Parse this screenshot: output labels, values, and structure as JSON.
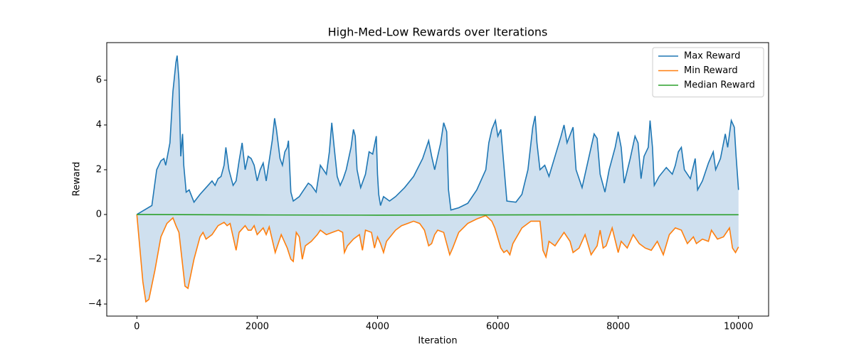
{
  "chart_data": {
    "type": "line",
    "title": "High-Med-Low Rewards over Iterations",
    "x_label": "Iteration",
    "y_label": "Reward",
    "xlim": [
      -500,
      10500
    ],
    "ylim": [
      -4.54,
      7.68
    ],
    "xticks": [
      0,
      2000,
      4000,
      6000,
      8000,
      10000
    ],
    "yticks": [
      {
        "value": -4,
        "label": "−4"
      },
      {
        "value": -2,
        "label": "−2"
      },
      0,
      2,
      4,
      6
    ],
    "legend": "upper right",
    "fill_between": true,
    "fill_color": "#cfe0ef",
    "series": [
      {
        "name": "Max Reward",
        "color": "#1f77b4",
        "x": [
          0,
          250,
          330,
          400,
          450,
          480,
          550,
          600,
          650,
          670,
          700,
          730,
          760,
          780,
          820,
          870,
          950,
          1050,
          1150,
          1250,
          1300,
          1350,
          1400,
          1450,
          1480,
          1530,
          1600,
          1650,
          1700,
          1750,
          1800,
          1850,
          1900,
          1950,
          2000,
          2050,
          2100,
          2150,
          2200,
          2250,
          2290,
          2320,
          2380,
          2420,
          2460,
          2500,
          2520,
          2560,
          2600,
          2700,
          2750,
          2800,
          2850,
          2900,
          2980,
          3050,
          3100,
          3150,
          3200,
          3240,
          3280,
          3330,
          3380,
          3430,
          3480,
          3520,
          3560,
          3600,
          3630,
          3660,
          3720,
          3800,
          3860,
          3920,
          3980,
          4000,
          4020,
          4050,
          4100,
          4200,
          4300,
          4450,
          4600,
          4750,
          4850,
          4900,
          4950,
          5050,
          5100,
          5150,
          5180,
          5220,
          5350,
          5500,
          5650,
          5800,
          5850,
          5900,
          5960,
          6000,
          6050,
          6100,
          6150,
          6300,
          6400,
          6500,
          6580,
          6620,
          6650,
          6700,
          6780,
          6850,
          6950,
          7050,
          7100,
          7150,
          7250,
          7300,
          7400,
          7500,
          7600,
          7650,
          7700,
          7780,
          7850,
          7950,
          8000,
          8050,
          8100,
          8200,
          8280,
          8330,
          8380,
          8430,
          8500,
          8530,
          8570,
          8600,
          8680,
          8800,
          8900,
          8950,
          9000,
          9050,
          9100,
          9200,
          9280,
          9320,
          9400,
          9500,
          9580,
          9620,
          9700,
          9780,
          9820,
          9880,
          9930,
          9960,
          10000
        ],
        "values": [
          0,
          0.4,
          2.0,
          2.4,
          2.5,
          2.2,
          3.2,
          5.5,
          6.8,
          7.1,
          6.0,
          2.6,
          3.6,
          2.2,
          1.0,
          1.1,
          0.55,
          0.9,
          1.2,
          1.5,
          1.3,
          1.6,
          1.7,
          2.2,
          3.0,
          2.0,
          1.3,
          1.5,
          2.4,
          3.2,
          2.0,
          2.6,
          2.5,
          2.2,
          1.5,
          2.0,
          2.3,
          1.5,
          2.4,
          3.3,
          4.3,
          3.8,
          2.5,
          2.2,
          2.8,
          3.0,
          3.3,
          1.0,
          0.6,
          0.8,
          1.0,
          1.2,
          1.4,
          1.3,
          1.0,
          2.2,
          2.0,
          1.8,
          2.8,
          4.1,
          3.0,
          1.7,
          1.3,
          1.6,
          2.0,
          2.5,
          3.0,
          3.8,
          3.5,
          2.0,
          1.2,
          1.8,
          2.8,
          2.7,
          3.5,
          1.8,
          0.9,
          0.4,
          0.8,
          0.6,
          0.8,
          1.2,
          1.7,
          2.5,
          3.3,
          2.6,
          2.0,
          3.2,
          4.1,
          3.7,
          1.1,
          0.2,
          0.3,
          0.5,
          1.1,
          2.0,
          3.2,
          3.8,
          4.2,
          3.5,
          3.8,
          2.2,
          0.6,
          0.55,
          0.9,
          2.0,
          3.9,
          4.4,
          3.2,
          2.0,
          2.2,
          1.7,
          2.6,
          3.5,
          4.0,
          3.2,
          3.9,
          2.0,
          1.2,
          2.4,
          3.6,
          3.4,
          1.8,
          1.0,
          2.0,
          3.0,
          3.7,
          3.0,
          1.4,
          2.5,
          3.5,
          3.2,
          1.6,
          2.6,
          3.0,
          4.2,
          3.0,
          1.3,
          1.7,
          2.1,
          1.8,
          2.2,
          2.8,
          3.0,
          2.0,
          1.6,
          2.5,
          1.1,
          1.5,
          2.3,
          2.8,
          2.0,
          2.5,
          3.6,
          3.0,
          4.2,
          3.9,
          2.6,
          1.1
        ]
      },
      {
        "name": "Min Reward",
        "color": "#ff7f0e",
        "x": [
          0,
          50,
          100,
          150,
          200,
          300,
          400,
          500,
          600,
          650,
          700,
          750,
          800,
          850,
          950,
          1050,
          1100,
          1150,
          1250,
          1350,
          1450,
          1500,
          1550,
          1600,
          1650,
          1700,
          1800,
          1850,
          1900,
          1950,
          2000,
          2100,
          2150,
          2200,
          2300,
          2400,
          2500,
          2560,
          2600,
          2650,
          2700,
          2750,
          2800,
          2900,
          3000,
          3050,
          3150,
          3250,
          3350,
          3420,
          3450,
          3500,
          3600,
          3700,
          3750,
          3800,
          3900,
          3950,
          4000,
          4050,
          4100,
          4150,
          4300,
          4400,
          4500,
          4600,
          4700,
          4780,
          4850,
          4900,
          4950,
          5000,
          5100,
          5200,
          5250,
          5350,
          5500,
          5650,
          5800,
          5900,
          5950,
          6050,
          6100,
          6150,
          6200,
          6250,
          6400,
          6550,
          6700,
          6750,
          6800,
          6850,
          6950,
          7100,
          7200,
          7250,
          7350,
          7450,
          7550,
          7650,
          7700,
          7750,
          7800,
          7900,
          8000,
          8050,
          8150,
          8250,
          8350,
          8450,
          8550,
          8650,
          8750,
          8850,
          8950,
          9050,
          9150,
          9250,
          9300,
          9400,
          9500,
          9550,
          9650,
          9750,
          9850,
          9900,
          9950,
          10000
        ],
        "values": [
          0,
          -1.5,
          -3.0,
          -3.9,
          -3.8,
          -2.5,
          -1.0,
          -0.4,
          -0.15,
          -0.5,
          -0.8,
          -2.0,
          -3.2,
          -3.3,
          -2.0,
          -1.0,
          -0.8,
          -1.1,
          -0.9,
          -0.5,
          -0.35,
          -0.5,
          -0.4,
          -1.0,
          -1.6,
          -0.8,
          -0.5,
          -0.7,
          -0.7,
          -0.5,
          -0.9,
          -0.6,
          -0.9,
          -0.55,
          -1.7,
          -0.9,
          -1.5,
          -2.0,
          -2.1,
          -0.8,
          -1.0,
          -2.0,
          -1.4,
          -1.2,
          -0.9,
          -0.7,
          -0.9,
          -0.8,
          -0.7,
          -0.8,
          -1.7,
          -1.4,
          -1.1,
          -0.9,
          -1.6,
          -0.7,
          -0.8,
          -1.5,
          -1.0,
          -1.3,
          -1.7,
          -1.2,
          -0.7,
          -0.5,
          -0.4,
          -0.3,
          -0.4,
          -0.7,
          -1.4,
          -1.3,
          -0.9,
          -0.7,
          -0.8,
          -1.8,
          -1.5,
          -0.8,
          -0.4,
          -0.2,
          -0.05,
          -0.3,
          -0.6,
          -1.5,
          -1.7,
          -1.6,
          -1.8,
          -1.3,
          -0.6,
          -0.3,
          -0.3,
          -1.6,
          -1.9,
          -1.2,
          -1.4,
          -0.8,
          -1.2,
          -1.7,
          -1.5,
          -0.9,
          -1.8,
          -1.4,
          -0.7,
          -1.5,
          -1.4,
          -0.6,
          -1.7,
          -1.2,
          -1.5,
          -0.9,
          -1.3,
          -1.5,
          -1.6,
          -1.2,
          -1.8,
          -0.9,
          -0.6,
          -0.7,
          -1.3,
          -1.0,
          -1.3,
          -1.1,
          -1.2,
          -0.7,
          -1.1,
          -1.0,
          -0.6,
          -1.5,
          -1.7,
          -1.45
        ]
      },
      {
        "name": "Median Reward",
        "color": "#2ca02c",
        "x": [
          0,
          2000,
          4000,
          6000,
          8000,
          10000
        ],
        "values": [
          0,
          -0.02,
          -0.03,
          -0.02,
          -0.01,
          -0.01
        ]
      }
    ]
  }
}
